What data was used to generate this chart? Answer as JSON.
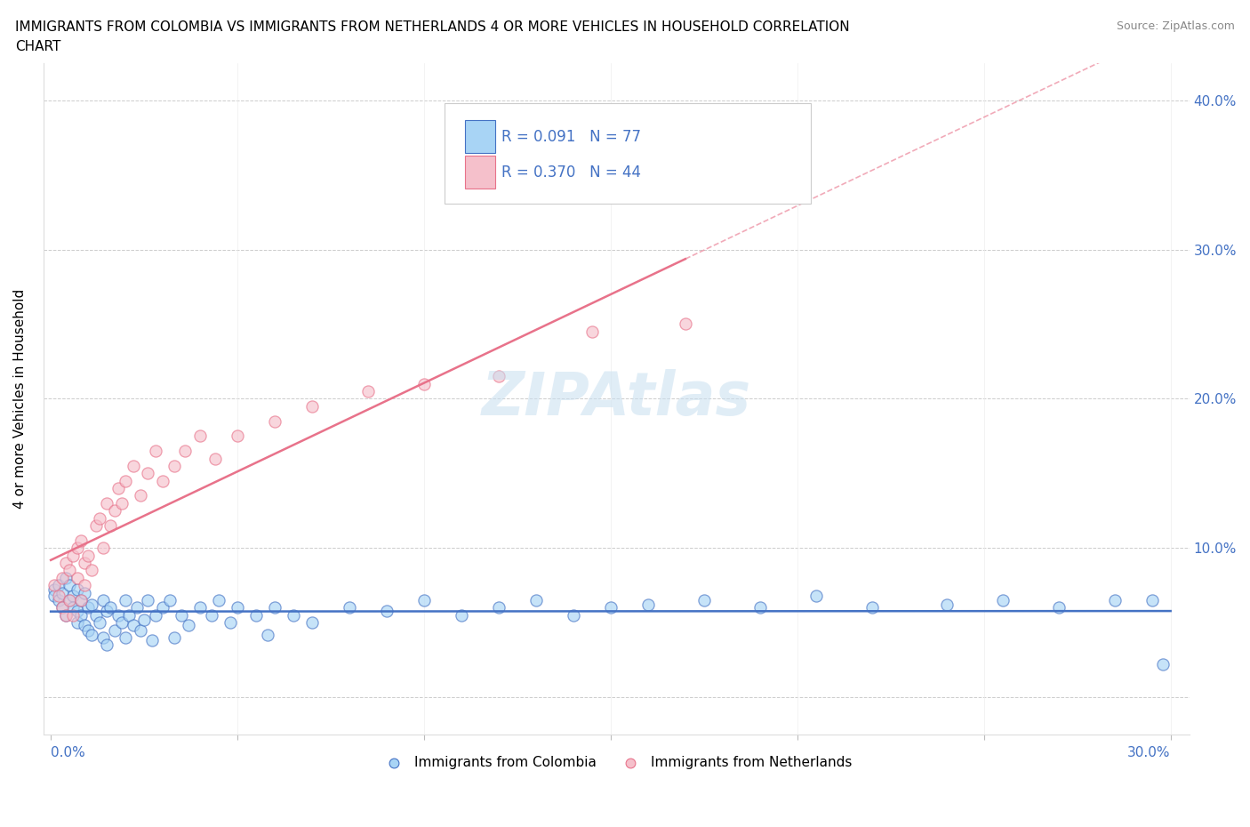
{
  "title_line1": "IMMIGRANTS FROM COLOMBIA VS IMMIGRANTS FROM NETHERLANDS 4 OR MORE VEHICLES IN HOUSEHOLD CORRELATION",
  "title_line2": "CHART",
  "source": "Source: ZipAtlas.com",
  "ylabel": "4 or more Vehicles in Household",
  "xlim": [
    -0.002,
    0.305
  ],
  "ylim": [
    -0.025,
    0.425
  ],
  "xtick_vals": [
    0.0,
    0.05,
    0.1,
    0.15,
    0.2,
    0.25,
    0.3
  ],
  "ytick_vals": [
    0.0,
    0.1,
    0.2,
    0.3,
    0.4
  ],
  "color_colombia": "#a8d4f5",
  "color_netherlands": "#f5c0cb",
  "edge_colombia": "#4472c4",
  "edge_netherlands": "#e8728a",
  "line_colombia": "#4472c4",
  "line_netherlands": "#e8728a",
  "R_colombia": 0.091,
  "N_colombia": 77,
  "R_netherlands": 0.37,
  "N_netherlands": 44,
  "legend_labels": [
    "Immigrants from Colombia",
    "Immigrants from Netherlands"
  ],
  "colombia_x": [
    0.001,
    0.001,
    0.002,
    0.002,
    0.003,
    0.003,
    0.004,
    0.004,
    0.005,
    0.005,
    0.006,
    0.006,
    0.007,
    0.007,
    0.007,
    0.008,
    0.008,
    0.009,
    0.009,
    0.01,
    0.01,
    0.011,
    0.011,
    0.012,
    0.013,
    0.014,
    0.014,
    0.015,
    0.015,
    0.016,
    0.017,
    0.018,
    0.019,
    0.02,
    0.02,
    0.021,
    0.022,
    0.023,
    0.024,
    0.025,
    0.026,
    0.027,
    0.028,
    0.03,
    0.032,
    0.033,
    0.035,
    0.037,
    0.04,
    0.043,
    0.045,
    0.048,
    0.05,
    0.055,
    0.058,
    0.06,
    0.065,
    0.07,
    0.08,
    0.09,
    0.1,
    0.11,
    0.12,
    0.13,
    0.14,
    0.15,
    0.16,
    0.175,
    0.19,
    0.205,
    0.22,
    0.24,
    0.255,
    0.27,
    0.285,
    0.295,
    0.298
  ],
  "colombia_y": [
    0.072,
    0.068,
    0.075,
    0.065,
    0.07,
    0.06,
    0.08,
    0.055,
    0.075,
    0.065,
    0.068,
    0.06,
    0.072,
    0.058,
    0.05,
    0.065,
    0.055,
    0.07,
    0.048,
    0.06,
    0.045,
    0.062,
    0.042,
    0.055,
    0.05,
    0.065,
    0.04,
    0.058,
    0.035,
    0.06,
    0.045,
    0.055,
    0.05,
    0.065,
    0.04,
    0.055,
    0.048,
    0.06,
    0.045,
    0.052,
    0.065,
    0.038,
    0.055,
    0.06,
    0.065,
    0.04,
    0.055,
    0.048,
    0.06,
    0.055,
    0.065,
    0.05,
    0.06,
    0.055,
    0.042,
    0.06,
    0.055,
    0.05,
    0.06,
    0.058,
    0.065,
    0.055,
    0.06,
    0.065,
    0.055,
    0.06,
    0.062,
    0.065,
    0.06,
    0.068,
    0.06,
    0.062,
    0.065,
    0.06,
    0.065,
    0.065,
    0.022
  ],
  "netherlands_x": [
    0.001,
    0.002,
    0.003,
    0.003,
    0.004,
    0.004,
    0.005,
    0.005,
    0.006,
    0.006,
    0.007,
    0.007,
    0.008,
    0.008,
    0.009,
    0.009,
    0.01,
    0.011,
    0.012,
    0.013,
    0.014,
    0.015,
    0.016,
    0.017,
    0.018,
    0.019,
    0.02,
    0.022,
    0.024,
    0.026,
    0.028,
    0.03,
    0.033,
    0.036,
    0.04,
    0.044,
    0.05,
    0.06,
    0.07,
    0.085,
    0.1,
    0.12,
    0.145,
    0.17
  ],
  "netherlands_y": [
    0.075,
    0.068,
    0.08,
    0.06,
    0.09,
    0.055,
    0.085,
    0.065,
    0.095,
    0.055,
    0.08,
    0.1,
    0.105,
    0.065,
    0.09,
    0.075,
    0.095,
    0.085,
    0.115,
    0.12,
    0.1,
    0.13,
    0.115,
    0.125,
    0.14,
    0.13,
    0.145,
    0.155,
    0.135,
    0.15,
    0.165,
    0.145,
    0.155,
    0.165,
    0.175,
    0.16,
    0.175,
    0.185,
    0.195,
    0.205,
    0.21,
    0.215,
    0.245,
    0.25
  ]
}
